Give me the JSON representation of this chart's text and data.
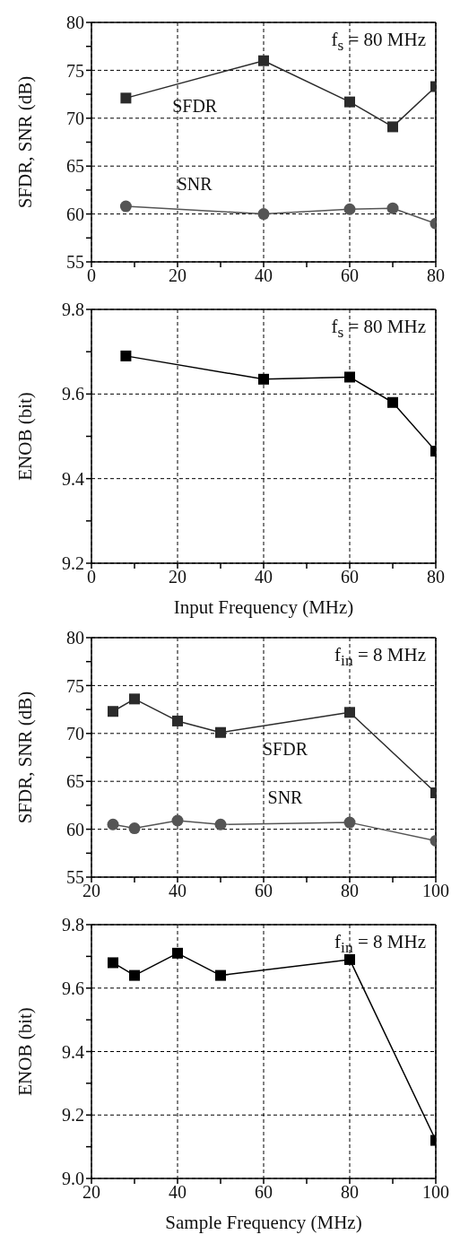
{
  "chart_data": [
    {
      "type": "line",
      "ylabel": "SFDR, SNR (dB)",
      "x": [
        8,
        40,
        60,
        70,
        80
      ],
      "series": [
        {
          "name": "SFDR",
          "color": "#2b2b2b",
          "marker": "square",
          "values": [
            72.1,
            76.0,
            71.7,
            69.1,
            73.3
          ]
        },
        {
          "name": "SNR",
          "color": "#555555",
          "marker": "circle",
          "values": [
            60.8,
            60.0,
            60.5,
            60.6,
            59.0
          ]
        }
      ],
      "xlim": [
        0,
        80
      ],
      "xticks": [
        0,
        {
          "value": 10,
          "label": null
        },
        20,
        {
          "value": 30,
          "label": null
        },
        40,
        {
          "value": 50,
          "label": null
        },
        60,
        {
          "value": 70,
          "label": null
        },
        80
      ],
      "ylim": [
        55,
        80
      ],
      "yticks": [
        55,
        {
          "value": 57.5,
          "label": null
        },
        60,
        {
          "value": 62.5,
          "label": null
        },
        65,
        {
          "value": 67.5,
          "label": null
        },
        70,
        {
          "value": 72.5,
          "label": null
        },
        75,
        {
          "value": 77.5,
          "label": null
        },
        80
      ],
      "grid": true,
      "legend": false,
      "annotations": [
        "f$_{s}$ = 80 MHz"
      ]
    },
    {
      "type": "line",
      "ylabel": "ENOB (bit)",
      "xlabel": "Input Frequency (MHz)",
      "x": [
        8,
        40,
        60,
        70,
        80
      ],
      "series": [
        {
          "color": "#000000",
          "marker": "square",
          "values": [
            9.69,
            9.635,
            9.64,
            9.58,
            9.465
          ]
        }
      ],
      "xlim": [
        0,
        80
      ],
      "xticks": [
        0,
        {
          "value": 10,
          "label": null
        },
        20,
        {
          "value": 30,
          "label": null
        },
        40,
        {
          "value": 50,
          "label": null
        },
        60,
        {
          "value": 70,
          "label": null
        },
        80
      ],
      "ylim": [
        9.2,
        9.8
      ],
      "yticks": [
        9.2,
        {
          "value": 9.3,
          "label": null
        },
        9.4,
        {
          "value": 9.5,
          "label": null
        },
        9.6,
        {
          "value": 9.7,
          "label": null
        },
        9.8
      ],
      "grid": true,
      "legend": false,
      "annotations": [
        "f$_{s}$ = 80 MHz"
      ]
    },
    {
      "type": "line",
      "ylabel": "SFDR, SNR (dB)",
      "x": [
        25,
        30,
        40,
        50,
        80,
        100
      ],
      "series": [
        {
          "name": "SFDR",
          "color": "#2b2b2b",
          "marker": "square",
          "values": [
            72.3,
            73.6,
            71.3,
            70.1,
            72.2,
            63.8
          ]
        },
        {
          "name": "SNR",
          "color": "#555555",
          "marker": "circle",
          "values": [
            60.5,
            60.1,
            60.9,
            60.5,
            60.7,
            58.8
          ]
        }
      ],
      "xlim": [
        20,
        100
      ],
      "xticks": [
        20,
        {
          "value": 30,
          "label": null
        },
        40,
        {
          "value": 50,
          "label": null
        },
        60,
        {
          "value": 70,
          "label": null
        },
        80,
        {
          "value": 90,
          "label": null
        },
        100
      ],
      "ylim": [
        55,
        80
      ],
      "yticks": [
        55,
        {
          "value": 57.5,
          "label": null
        },
        60,
        {
          "value": 62.5,
          "label": null
        },
        65,
        {
          "value": 67.5,
          "label": null
        },
        70,
        {
          "value": 72.5,
          "label": null
        },
        75,
        {
          "value": 77.5,
          "label": null
        },
        80
      ],
      "grid": true,
      "legend": false,
      "annotations": [
        "f$_{in}$ = 8 MHz"
      ]
    },
    {
      "type": "line",
      "ylabel": "ENOB (bit)",
      "xlabel": "Sample Frequency (MHz)",
      "x": [
        25,
        30,
        40,
        50,
        80,
        100
      ],
      "series": [
        {
          "color": "#000000",
          "marker": "square",
          "values": [
            9.68,
            9.64,
            9.71,
            9.64,
            9.69,
            9.12
          ]
        }
      ],
      "xlim": [
        20,
        100
      ],
      "xticks": [
        20,
        {
          "value": 30,
          "label": null
        },
        40,
        {
          "value": 50,
          "label": null
        },
        60,
        {
          "value": 70,
          "label": null
        },
        80,
        {
          "value": 90,
          "label": null
        },
        100
      ],
      "ylim": [
        9.0,
        9.8
      ],
      "yticks": [
        {
          "value": 9.0,
          "label": "9.0"
        },
        {
          "value": 9.1,
          "label": null
        },
        9.2,
        {
          "value": 9.3,
          "label": null
        },
        9.4,
        {
          "value": 9.5,
          "label": null
        },
        9.6,
        {
          "value": 9.7,
          "label": null
        },
        9.8
      ],
      "grid": true,
      "legend": false,
      "annotations": [
        "f$_{in}$ = 8 MHz"
      ]
    }
  ]
}
